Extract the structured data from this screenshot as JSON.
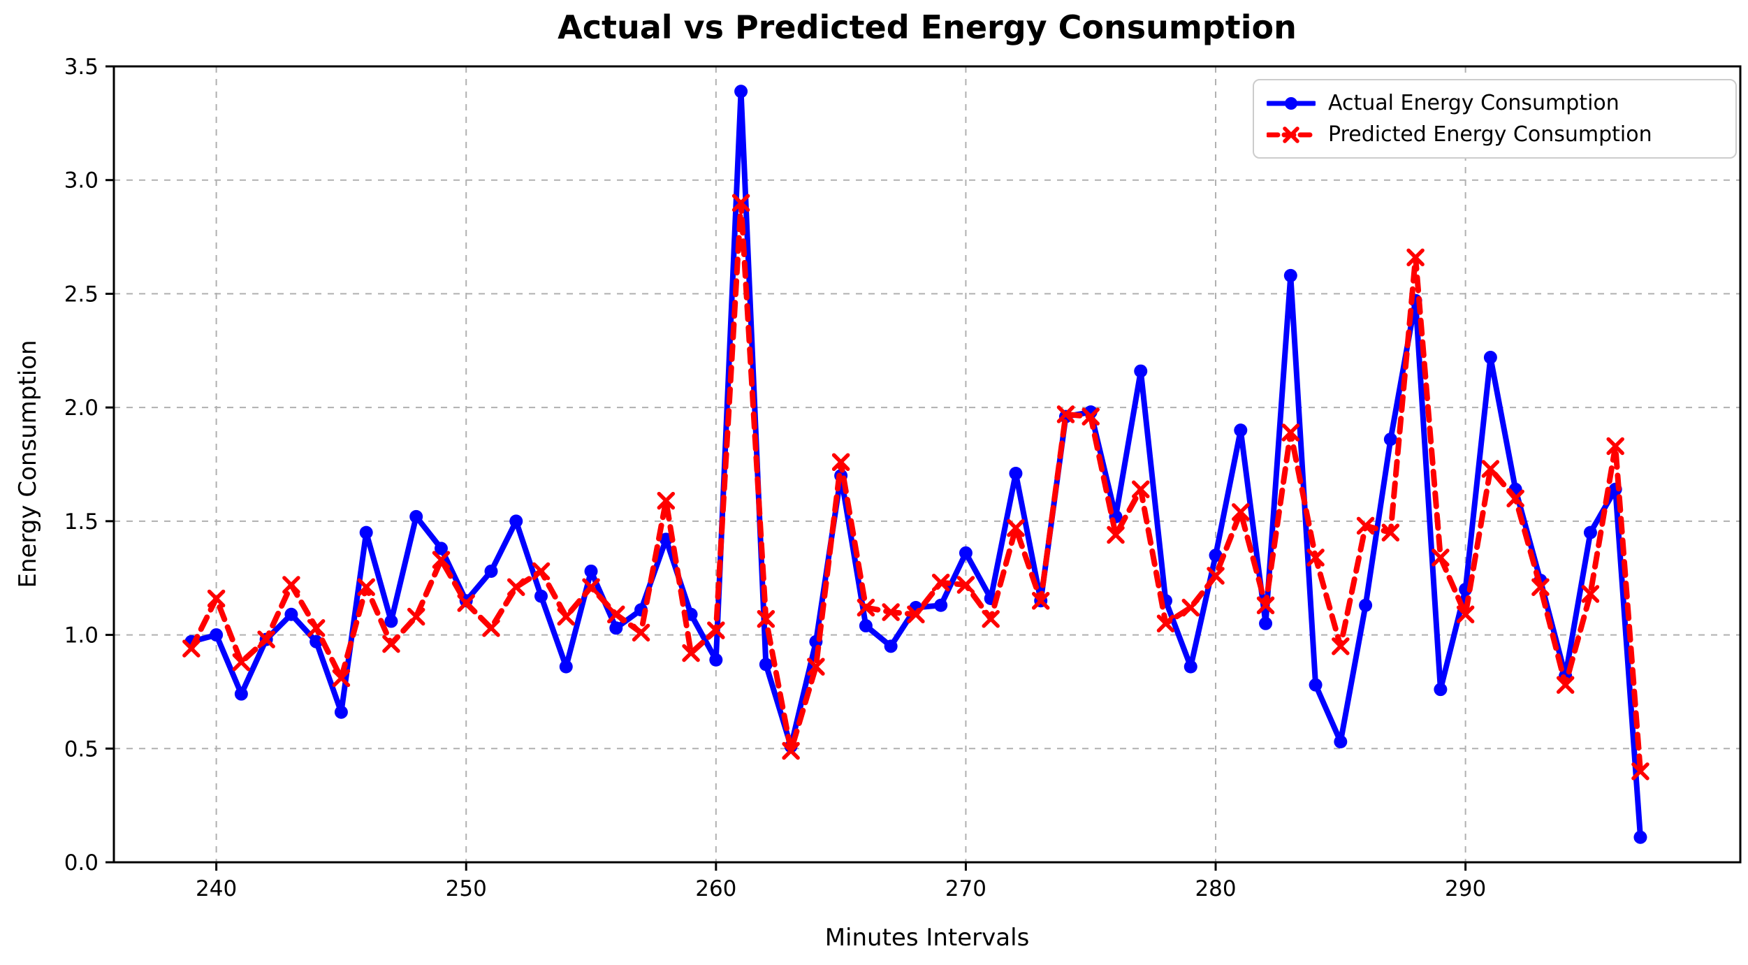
{
  "figure": {
    "background_color": "#ffffff",
    "grid_color": "#b0b0b0",
    "spine_color": "#000000"
  },
  "chart_data": {
    "type": "line",
    "title": "Actual vs Predicted Energy Consumption",
    "xlabel": "Minutes Intervals",
    "ylabel": "Energy Consumption",
    "xlim": [
      235.9,
      301.0
    ],
    "ylim": [
      0.0,
      3.5
    ],
    "x_ticks": [
      240,
      250,
      260,
      270,
      280,
      290
    ],
    "y_ticks": [
      0.0,
      0.5,
      1.0,
      1.5,
      2.0,
      2.5,
      3.0,
      3.5
    ],
    "grid": true,
    "grid_style": "dashed",
    "legend_position": "upper right",
    "x": [
      239,
      240,
      241,
      242,
      243,
      244,
      245,
      246,
      247,
      248,
      249,
      250,
      251,
      252,
      253,
      254,
      255,
      256,
      257,
      258,
      259,
      260,
      261,
      262,
      263,
      264,
      265,
      266,
      267,
      268,
      269,
      270,
      271,
      272,
      273,
      274,
      275,
      276,
      277,
      278,
      279,
      280,
      281,
      282,
      283,
      284,
      285,
      286,
      287,
      288,
      289,
      290,
      291,
      292,
      293,
      294,
      295,
      296,
      297
    ],
    "series": [
      {
        "key": "actual",
        "name": "Actual Energy Consumption",
        "color": "#0000ff",
        "line_style": "solid",
        "marker": "circle",
        "values": [
          0.97,
          1.0,
          0.74,
          0.98,
          1.09,
          0.97,
          0.66,
          1.45,
          1.06,
          1.52,
          1.38,
          1.15,
          1.28,
          1.5,
          1.17,
          0.86,
          1.28,
          1.03,
          1.11,
          1.42,
          1.09,
          0.89,
          3.39,
          0.87,
          0.51,
          0.97,
          1.7,
          1.04,
          0.95,
          1.12,
          1.13,
          1.36,
          1.16,
          1.71,
          1.15,
          1.96,
          1.98,
          1.52,
          2.16,
          1.15,
          0.86,
          1.35,
          1.9,
          1.05,
          2.58,
          0.78,
          0.53,
          1.13,
          1.86,
          2.47,
          0.76,
          1.2,
          2.22,
          1.64,
          1.24,
          0.82,
          1.45,
          1.64,
          0.11
        ]
      },
      {
        "key": "predicted",
        "name": "Predicted Energy Consumption",
        "color": "#ff0000",
        "line_style": "dashed",
        "marker": "x",
        "values": [
          0.94,
          1.16,
          0.88,
          0.98,
          1.22,
          1.03,
          0.81,
          1.21,
          0.96,
          1.08,
          1.33,
          1.14,
          1.03,
          1.21,
          1.28,
          1.08,
          1.21,
          1.09,
          1.01,
          1.59,
          0.92,
          1.02,
          2.9,
          1.07,
          0.49,
          0.86,
          1.76,
          1.12,
          1.1,
          1.09,
          1.23,
          1.22,
          1.07,
          1.47,
          1.15,
          1.97,
          1.96,
          1.44,
          1.64,
          1.05,
          1.12,
          1.26,
          1.54,
          1.13,
          1.89,
          1.34,
          0.95,
          1.48,
          1.45,
          2.66,
          1.34,
          1.09,
          1.73,
          1.6,
          1.21,
          0.78,
          1.18,
          1.83,
          0.4
        ]
      }
    ]
  }
}
